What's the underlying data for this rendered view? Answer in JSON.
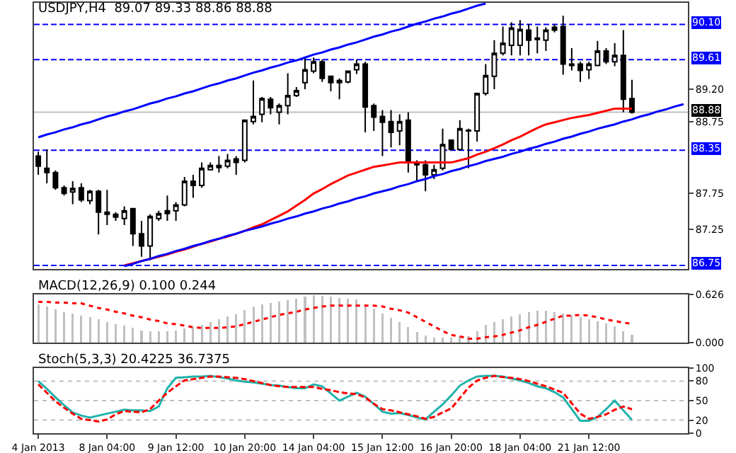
{
  "chart_data": [
    {
      "type": "candlestick",
      "title": "USDJPY,H4  89.07 89.33 88.86 88.88",
      "categories": [
        null,
        null,
        null,
        null,
        null,
        null,
        null,
        null,
        null,
        null,
        null,
        null,
        null,
        null,
        null,
        null,
        null,
        null,
        null,
        null,
        null,
        null,
        null,
        null,
        null,
        null,
        null,
        null,
        null,
        null,
        null,
        null,
        null,
        null,
        null,
        null,
        null,
        null,
        null,
        null,
        null,
        null,
        null,
        null,
        null,
        null,
        null,
        null,
        null,
        null,
        null,
        null,
        null,
        null,
        null,
        null,
        null,
        null,
        null,
        null,
        null,
        null,
        null,
        null,
        null,
        null,
        null,
        null,
        null,
        null,
        null,
        null,
        null,
        null,
        null,
        null
      ],
      "ohlc": [
        [
          88.27,
          88.33,
          88.01,
          88.13
        ],
        [
          88.1,
          88.36,
          87.89,
          88.04
        ],
        [
          88.04,
          88.07,
          87.8,
          87.83
        ],
        [
          87.83,
          87.86,
          87.72,
          87.75
        ],
        [
          87.77,
          87.92,
          87.6,
          87.82
        ],
        [
          87.83,
          87.89,
          87.63,
          87.66
        ],
        [
          87.65,
          87.8,
          87.6,
          87.78
        ],
        [
          87.78,
          87.8,
          87.18,
          87.49
        ],
        [
          87.49,
          87.8,
          87.31,
          87.46
        ],
        [
          87.46,
          87.49,
          87.37,
          87.42
        ],
        [
          87.4,
          87.57,
          87.31,
          87.51
        ],
        [
          87.54,
          87.54,
          87.02,
          87.19
        ],
        [
          87.19,
          87.37,
          86.87,
          87.02
        ],
        [
          87.02,
          87.46,
          86.82,
          87.43
        ],
        [
          87.4,
          87.51,
          87.37,
          87.47
        ],
        [
          87.47,
          87.72,
          87.37,
          87.51
        ],
        [
          87.51,
          87.63,
          87.37,
          87.59
        ],
        [
          87.59,
          87.98,
          87.57,
          87.92
        ],
        [
          87.92,
          88.01,
          87.69,
          87.86
        ],
        [
          87.86,
          88.18,
          87.83,
          88.1
        ],
        [
          88.08,
          88.18,
          88.07,
          88.14
        ],
        [
          88.11,
          88.27,
          88.04,
          88.14
        ],
        [
          88.13,
          88.3,
          88.1,
          88.21
        ],
        [
          88.23,
          88.27,
          88.01,
          88.18
        ],
        [
          88.21,
          88.77,
          88.18,
          88.77
        ],
        [
          88.75,
          89.32,
          88.71,
          88.82
        ],
        [
          88.85,
          89.09,
          88.74,
          89.07
        ],
        [
          89.06,
          89.09,
          88.85,
          88.94
        ],
        [
          88.88,
          89.0,
          88.71,
          88.97
        ],
        [
          88.97,
          89.42,
          88.85,
          89.11
        ],
        [
          89.11,
          89.23,
          89.09,
          89.18
        ],
        [
          89.29,
          89.64,
          89.2,
          89.47
        ],
        [
          89.45,
          89.64,
          89.42,
          89.58
        ],
        [
          89.58,
          89.61,
          89.3,
          89.35
        ],
        [
          89.38,
          89.39,
          89.17,
          89.29
        ],
        [
          89.32,
          89.35,
          89.06,
          89.29
        ],
        [
          89.3,
          89.46,
          89.28,
          89.45
        ],
        [
          89.47,
          89.61,
          89.41,
          89.55
        ],
        [
          89.55,
          89.58,
          88.6,
          88.95
        ],
        [
          88.97,
          89.0,
          88.62,
          88.81
        ],
        [
          88.82,
          88.91,
          88.27,
          88.74
        ],
        [
          88.75,
          88.91,
          88.39,
          88.6
        ],
        [
          88.62,
          88.85,
          88.42,
          88.75
        ],
        [
          88.77,
          88.88,
          88.04,
          88.2
        ],
        [
          88.18,
          88.21,
          87.92,
          88.15
        ],
        [
          88.15,
          88.21,
          87.78,
          88.01
        ],
        [
          88.01,
          88.15,
          87.95,
          88.08
        ],
        [
          88.1,
          88.65,
          88.07,
          88.43
        ],
        [
          88.49,
          88.5,
          88.35,
          88.36
        ],
        [
          88.36,
          88.77,
          88.35,
          88.65
        ],
        [
          88.62,
          88.65,
          88.1,
          88.63
        ],
        [
          88.62,
          89.14,
          88.47,
          89.14
        ],
        [
          89.14,
          89.55,
          89.11,
          89.39
        ],
        [
          89.38,
          89.88,
          89.2,
          89.7
        ],
        [
          89.7,
          90.07,
          89.67,
          89.84
        ],
        [
          89.81,
          90.13,
          89.67,
          90.05
        ],
        [
          89.81,
          90.16,
          89.67,
          90.03
        ],
        [
          90.02,
          90.1,
          89.67,
          89.88
        ],
        [
          89.91,
          90.07,
          89.7,
          89.89
        ],
        [
          89.88,
          90.06,
          89.73,
          90.02
        ],
        [
          90.02,
          90.1,
          89.99,
          90.06
        ],
        [
          90.07,
          90.22,
          89.4,
          89.55
        ],
        [
          89.55,
          89.77,
          89.46,
          89.53
        ],
        [
          89.55,
          89.58,
          89.3,
          89.46
        ],
        [
          89.47,
          89.58,
          89.34,
          89.55
        ],
        [
          89.53,
          89.87,
          89.52,
          89.73
        ],
        [
          89.73,
          89.77,
          89.55,
          89.58
        ],
        [
          89.58,
          89.84,
          89.52,
          89.67
        ],
        [
          89.67,
          90.02,
          88.88,
          89.06
        ],
        [
          89.07,
          89.33,
          88.86,
          88.88
        ],
        null,
        null,
        null,
        null,
        null,
        null
      ],
      "series": [
        {
          "type": "line",
          "color": "#ff0000",
          "values": [
            null,
            null,
            null,
            null,
            null,
            null,
            null,
            null,
            null,
            null,
            86.75,
            86.78,
            86.81,
            86.84,
            86.87,
            86.9,
            86.94,
            86.97,
            87.01,
            87.05,
            87.08,
            87.12,
            87.15,
            87.19,
            87.23,
            87.28,
            87.32,
            87.38,
            87.44,
            87.5,
            87.58,
            87.66,
            87.75,
            87.81,
            87.88,
            87.94,
            88.0,
            88.04,
            88.08,
            88.12,
            88.14,
            88.16,
            88.18,
            88.18,
            88.18,
            88.18,
            88.18,
            88.18,
            88.18,
            88.21,
            88.24,
            88.29,
            88.33,
            88.38,
            88.43,
            88.49,
            88.54,
            88.6,
            88.66,
            88.71,
            88.74,
            88.77,
            88.8,
            88.82,
            88.84,
            88.87,
            88.9,
            88.93,
            88.93,
            88.93,
            null,
            null,
            null,
            null,
            null,
            null
          ]
        },
        {
          "type": "line",
          "color": "#0000ff",
          "values": [
            88.53,
            88.57,
            88.6,
            88.64,
            88.67,
            88.71,
            88.74,
            88.78,
            88.82,
            88.85,
            88.89,
            88.92,
            88.96,
            89.0,
            89.03,
            89.07,
            89.1,
            89.14,
            89.17,
            89.21,
            89.25,
            89.28,
            89.32,
            89.35,
            89.39,
            89.43,
            89.46,
            89.5,
            89.53,
            89.57,
            89.6,
            89.64,
            89.68,
            89.71,
            89.75,
            89.78,
            89.82,
            89.85,
            89.89,
            89.93,
            89.96,
            90.0,
            90.03,
            90.07,
            90.11,
            90.14,
            90.18,
            90.21,
            90.25,
            90.28,
            90.32,
            90.36,
            90.39,
            null,
            null,
            null,
            null,
            null,
            null,
            null,
            null,
            null,
            null,
            null,
            null,
            null,
            null,
            null,
            null,
            null,
            null,
            null,
            null,
            null,
            null,
            null
          ]
        },
        {
          "type": "line",
          "color": "#0000ff",
          "values": [
            null,
            null,
            null,
            null,
            null,
            null,
            null,
            null,
            null,
            null,
            86.74,
            86.77,
            86.81,
            86.84,
            86.88,
            86.91,
            86.95,
            86.98,
            87.02,
            87.05,
            87.09,
            87.12,
            87.16,
            87.19,
            87.23,
            87.26,
            87.29,
            87.33,
            87.36,
            87.4,
            87.43,
            87.47,
            87.5,
            87.54,
            87.57,
            87.61,
            87.64,
            87.68,
            87.71,
            87.75,
            87.78,
            87.81,
            87.85,
            87.88,
            87.92,
            87.95,
            87.99,
            88.02,
            88.06,
            88.09,
            88.13,
            88.16,
            88.2,
            88.23,
            88.26,
            88.3,
            88.33,
            88.37,
            88.4,
            88.44,
            88.47,
            88.51,
            88.54,
            88.58,
            88.61,
            88.65,
            88.68,
            88.71,
            88.75,
            88.78,
            88.82,
            88.85,
            88.89,
            88.92,
            88.96,
            88.99
          ]
        }
      ],
      "ylim": [
        86.7,
        90.4
      ],
      "yticks": [
        87.25,
        87.75,
        88.75,
        {
          "value": 89.2,
          "label": "89.20"
        }
      ],
      "ref_lines": [
        {
          "axis": "y",
          "value": 90.1,
          "label": "90.10",
          "color": "#0000ff",
          "line_style": "dashed"
        },
        {
          "axis": "y",
          "value": 89.61,
          "label": "89.61",
          "color": "#0000ff",
          "line_style": "dashed"
        },
        {
          "axis": "y",
          "value": 88.88,
          "label": "88.88",
          "color": "#c0c0c0",
          "line_style": "solid"
        },
        {
          "axis": "y",
          "value": 88.35,
          "label": "88.35",
          "color": "#0000ff",
          "line_style": "dashed"
        },
        {
          "axis": "y",
          "value": 86.75,
          "label": "86.75",
          "color": "#0000ff",
          "line_style": "dashed"
        }
      ],
      "grid": false
    },
    {
      "type": "bar",
      "title": "MACD(12,26,9) 0.100 0.244",
      "categories": [
        null,
        null,
        null,
        null,
        null,
        null,
        null,
        null,
        null,
        null,
        null,
        null,
        null,
        null,
        null,
        null,
        null,
        null,
        null,
        null,
        null,
        null,
        null,
        null,
        null,
        null,
        null,
        null,
        null,
        null,
        null,
        null,
        null,
        null,
        null,
        null,
        null,
        null,
        null,
        null,
        null,
        null,
        null,
        null,
        null,
        null,
        null,
        null,
        null,
        null,
        null,
        null,
        null,
        null,
        null,
        null,
        null,
        null,
        null,
        null,
        null,
        null,
        null,
        null,
        null,
        null,
        null,
        null,
        null,
        null,
        null,
        null,
        null,
        null,
        null,
        null
      ],
      "series": [
        {
          "color": "#c0c0c0",
          "values": [
            0.5,
            0.47,
            0.43,
            0.4,
            0.38,
            0.35,
            0.33,
            0.3,
            0.27,
            0.24,
            0.22,
            0.19,
            0.16,
            0.15,
            0.15,
            0.15,
            0.16,
            0.18,
            0.2,
            0.23,
            0.27,
            0.3,
            0.34,
            0.37,
            0.42,
            0.47,
            0.5,
            0.52,
            0.53,
            0.55,
            0.57,
            0.6,
            0.62,
            0.61,
            0.6,
            0.58,
            0.57,
            0.56,
            0.5,
            0.44,
            0.38,
            0.32,
            0.27,
            0.2,
            0.14,
            0.09,
            0.06,
            0.06,
            0.06,
            0.08,
            0.08,
            0.15,
            0.23,
            0.27,
            0.3,
            0.34,
            0.37,
            0.4,
            0.41,
            0.41,
            0.4,
            0.38,
            0.36,
            0.33,
            0.3,
            0.28,
            0.25,
            0.21,
            0.15,
            0.1,
            null,
            null,
            null,
            null,
            null,
            null
          ]
        },
        {
          "type": "line",
          "color": "#ff0000",
          "line_style": "dotted",
          "values": [
            0.53,
            0.53,
            0.52,
            0.52,
            0.51,
            0.51,
            0.48,
            0.45,
            0.43,
            0.4,
            0.38,
            0.35,
            0.33,
            0.3,
            0.28,
            0.25,
            0.24,
            0.22,
            0.2,
            0.19,
            0.19,
            0.19,
            0.2,
            0.21,
            0.24,
            0.27,
            0.3,
            0.33,
            0.36,
            0.38,
            0.4,
            0.43,
            0.45,
            0.47,
            0.48,
            0.48,
            0.48,
            0.48,
            0.48,
            0.48,
            0.47,
            0.44,
            0.42,
            0.39,
            0.33,
            0.27,
            0.21,
            0.15,
            0.1,
            0.08,
            0.05,
            0.05,
            0.07,
            0.08,
            0.1,
            0.13,
            0.16,
            0.2,
            0.23,
            0.27,
            0.31,
            0.35,
            0.35,
            0.36,
            0.35,
            0.33,
            0.3,
            0.28,
            0.26,
            0.244,
            null,
            null,
            null,
            null,
            null,
            null
          ]
        }
      ],
      "ylim": [
        0,
        0.626
      ],
      "yticks": [
        {
          "value": 0,
          "label": "0.000"
        },
        0.626
      ],
      "grid": false
    },
    {
      "type": "line",
      "title": "Stoch(5,3,3) 20.4225 36.7375",
      "categories": [
        "4 Jan 2013",
        null,
        null,
        null,
        null,
        null,
        null,
        null,
        "8 Jan 04:00",
        null,
        null,
        null,
        null,
        null,
        null,
        null,
        "9 Jan 12:00",
        null,
        null,
        null,
        null,
        null,
        null,
        null,
        "10 Jan 20:00",
        null,
        null,
        null,
        null,
        null,
        null,
        null,
        "14 Jan 04:00",
        null,
        null,
        null,
        null,
        null,
        null,
        null,
        "15 Jan 12:00",
        null,
        null,
        null,
        null,
        null,
        null,
        null,
        "16 Jan 20:00",
        null,
        null,
        null,
        null,
        null,
        null,
        null,
        "18 Jan 04:00",
        null,
        null,
        null,
        null,
        null,
        null,
        null,
        "21 Jan 12:00",
        null,
        null,
        null,
        null,
        null,
        null,
        null,
        null,
        null,
        null,
        null
      ],
      "series": [
        {
          "color": "#20b2aa",
          "values": [
            80,
            68,
            55,
            43,
            32,
            27,
            24,
            27,
            30,
            33,
            36,
            35,
            35,
            34,
            41,
            69,
            85,
            86,
            87,
            87,
            88,
            86,
            84,
            81,
            79,
            78,
            76,
            74,
            73,
            71,
            69,
            69,
            75,
            72,
            61,
            50,
            56,
            62,
            56,
            45,
            33,
            30,
            31,
            28,
            24,
            21,
            33,
            44,
            58,
            73,
            81,
            87,
            88,
            88,
            87,
            84,
            81,
            77,
            72,
            69,
            63,
            55,
            37,
            19,
            19,
            25,
            37,
            50,
            35,
            20.4225,
            null,
            null,
            null,
            null,
            null,
            null
          ]
        },
        {
          "color": "#ff0000",
          "line_style": "dashed",
          "values": [
            75,
            62,
            49,
            39,
            30,
            22,
            20,
            18,
            21,
            29,
            34,
            33,
            32,
            37,
            50,
            62,
            72,
            81,
            83,
            85,
            87,
            87,
            86,
            85,
            83,
            80,
            77,
            74,
            72,
            71,
            71,
            71,
            71,
            68,
            66,
            63,
            61,
            60,
            55,
            45,
            37,
            35,
            32,
            29,
            26,
            22,
            25,
            32,
            38,
            54,
            70,
            81,
            85,
            88,
            86,
            85,
            83,
            80,
            76,
            72,
            67,
            62,
            46,
            30,
            22,
            25,
            29,
            36,
            41,
            36.7375,
            null,
            null,
            null,
            null,
            null,
            null
          ]
        }
      ],
      "ylim": [
        0,
        100
      ],
      "yticks": [
        0,
        20,
        50,
        80,
        100
      ],
      "ref_lines": [
        {
          "axis": "y",
          "value": 80,
          "color": "#c0c0c0",
          "line_style": "dotted"
        },
        {
          "axis": "y",
          "value": 50,
          "color": "#c0c0c0",
          "line_style": "dotted"
        },
        {
          "axis": "y",
          "value": 20,
          "color": "#c0c0c0",
          "line_style": "dotted"
        }
      ],
      "grid": false
    }
  ]
}
